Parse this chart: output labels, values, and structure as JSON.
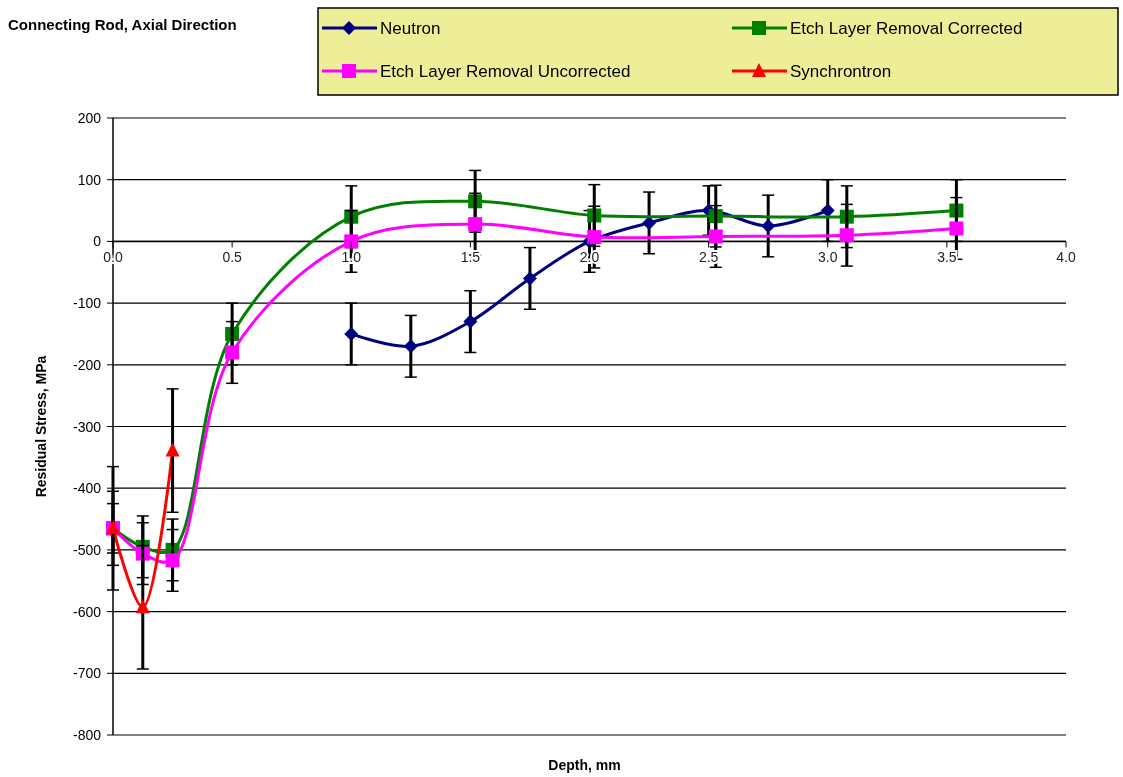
{
  "chart_data": {
    "type": "line",
    "title": "Connecting Rod, Axial Direction",
    "xlabel": "Depth, mm",
    "ylabel": "Residual Stress, MPa",
    "xlim": [
      0,
      4
    ],
    "xticks": [
      {
        "value": 0,
        "label": "0.0"
      },
      {
        "value": 0.5,
        "label": "0.5"
      },
      {
        "value": 1,
        "label": "1.0"
      },
      {
        "value": 1.5,
        "label": "1.5"
      },
      {
        "value": 2,
        "label": "2.0"
      },
      {
        "value": 2.5,
        "label": "2.5"
      },
      {
        "value": 3,
        "label": "3.0"
      },
      {
        "value": 3.5,
        "label": "3.5"
      },
      {
        "value": 4,
        "label": "4.0"
      }
    ],
    "ylim": [
      -800,
      200
    ],
    "yticks": [
      -800,
      -700,
      -600,
      -500,
      -400,
      -300,
      -200,
      -100,
      0,
      100,
      200
    ],
    "grid": "y",
    "legend": "top",
    "series": [
      {
        "name": "Neutron",
        "color": "#000080",
        "marker": "diamond",
        "x": [
          1,
          1.25,
          1.5,
          1.75,
          2,
          2.25,
          2.5,
          2.75,
          3
        ],
        "values": [
          -150,
          -170,
          -130,
          -60,
          0,
          30,
          50,
          25,
          50
        ],
        "errors": [
          50,
          50,
          50,
          50,
          50,
          50,
          40,
          50,
          50
        ]
      },
      {
        "name": "Etch Layer Removal Corrected",
        "color": "#008000",
        "marker": "square",
        "x": [
          0,
          0.125,
          0.25,
          0.5,
          1,
          1.52,
          2.02,
          2.53,
          3.08,
          3.54
        ],
        "values": [
          -465,
          -495,
          -500,
          -150,
          40,
          65,
          42,
          41,
          40,
          50
        ],
        "errors": [
          60,
          50,
          50,
          50,
          50,
          50,
          50,
          50,
          50,
          50
        ]
      },
      {
        "name": "Etch Layer Removal Uncorrected",
        "color": "#ff00ff",
        "marker": "square",
        "x": [
          0,
          0.125,
          0.25,
          0.5,
          1,
          1.52,
          2.02,
          2.53,
          3.08,
          3.54
        ],
        "values": [
          -465,
          -506,
          -517,
          -180,
          0,
          28,
          7,
          8,
          10,
          21
        ],
        "errors": [
          40,
          50,
          50,
          50,
          50,
          50,
          50,
          50,
          50,
          50
        ]
      },
      {
        "name": "Synchrontron",
        "color": "#ff0000",
        "marker": "triangle",
        "x": [
          0,
          0.125,
          0.25
        ],
        "values": [
          -465,
          -593,
          -339
        ],
        "errors": [
          100,
          100,
          100
        ]
      }
    ]
  }
}
